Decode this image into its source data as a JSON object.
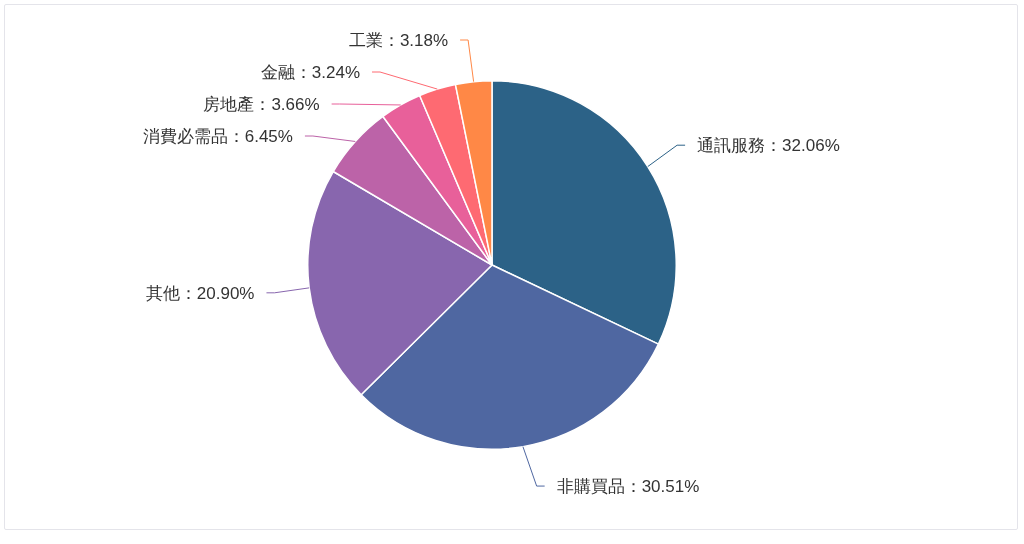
{
  "chart_data": {
    "type": "pie",
    "categories": [
      "通訊服務",
      "非購買品",
      "其他",
      "消費必需品",
      "房地產",
      "金融",
      "工業"
    ],
    "values": [
      32.06,
      30.51,
      20.9,
      6.45,
      3.66,
      3.24,
      3.18
    ],
    "colors": [
      "#2c6287",
      "#4f67a1",
      "#8866ae",
      "#bc63a8",
      "#e8609a",
      "#fe6a72",
      "#ff8846"
    ],
    "value_labels": [
      "32.06%",
      "30.51%",
      "20.90%",
      "6.45%",
      "3.66%",
      "3.24%",
      "3.18%"
    ]
  }
}
